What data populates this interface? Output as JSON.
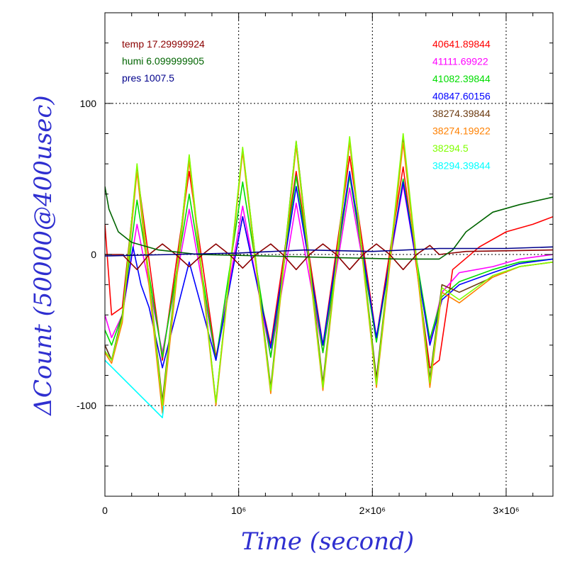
{
  "chart_data": {
    "type": "line",
    "title": "",
    "xlabel": "Time (second)",
    "ylabel": "ΔCount (50000@400usec)",
    "label_color": "#2f2fd0",
    "xlim": [
      0,
      3350000
    ],
    "ylim": [
      -160,
      160
    ],
    "grid": "dotted at tick labels",
    "x_ticks": [
      {
        "value": 0,
        "label": "0"
      },
      {
        "value": 1000000,
        "label": "10⁶"
      },
      {
        "value": 2000000,
        "label": "2×10⁶"
      },
      {
        "value": 3000000,
        "label": "3×10⁶"
      }
    ],
    "y_ticks": [
      {
        "value": 100,
        "label": "100"
      },
      {
        "value": 0,
        "label": "0"
      },
      {
        "value": -100,
        "label": "-100"
      }
    ],
    "annotations_left": [
      {
        "text": "temp 17.29999924",
        "color": "#8b0000"
      },
      {
        "text": "humi 6.099999905",
        "color": "#006400"
      },
      {
        "text": "pres 1007.5",
        "color": "#00008b"
      }
    ],
    "annotations_right": [
      {
        "text": "40641.89844",
        "color": "#ff0000"
      },
      {
        "text": "41111.69922",
        "color": "#ff00ff"
      },
      {
        "text": "41082.39844",
        "color": "#00dd00"
      },
      {
        "text": "40847.60156",
        "color": "#0000ff"
      },
      {
        "text": "38274.39844",
        "color": "#6b3a10"
      },
      {
        "text": "38274.19922",
        "color": "#ff8000"
      },
      {
        "text": "38294.5",
        "color": "#80ff00"
      },
      {
        "text": "38294.39844",
        "color": "#00ffff"
      }
    ],
    "series": [
      {
        "color": "#ff0000",
        "x": [
          0,
          50000,
          130000,
          240000,
          430000,
          630000,
          830000,
          1030000,
          1240000,
          1430000,
          1630000,
          1830000,
          2030000,
          2230000,
          2430000,
          2500000,
          2600000,
          2800000,
          3000000,
          3200000,
          3350000
        ],
        "y": [
          20,
          -40,
          -35,
          56,
          -70,
          55,
          -68,
          25,
          -60,
          55,
          -60,
          65,
          -55,
          58,
          -75,
          -70,
          -10,
          5,
          15,
          20,
          25
        ]
      },
      {
        "color": "#ff00ff",
        "x": [
          0,
          50000,
          130000,
          240000,
          430000,
          630000,
          830000,
          1030000,
          1240000,
          1430000,
          1630000,
          1830000,
          2030000,
          2230000,
          2430000,
          2520000,
          2650000,
          2900000,
          3100000,
          3350000
        ],
        "y": [
          -40,
          -55,
          -40,
          20,
          -65,
          30,
          -70,
          32,
          -68,
          34,
          -65,
          44,
          -55,
          46,
          -58,
          -25,
          -12,
          -8,
          -3,
          0
        ]
      },
      {
        "color": "#00dd00",
        "x": [
          0,
          50000,
          130000,
          240000,
          430000,
          630000,
          830000,
          1030000,
          1240000,
          1430000,
          1630000,
          1830000,
          2030000,
          2230000,
          2430000,
          2520000,
          2650000,
          2900000,
          3100000,
          3350000
        ],
        "y": [
          -50,
          -60,
          -40,
          36,
          -68,
          40,
          -70,
          48,
          -68,
          52,
          -65,
          52,
          -58,
          50,
          -56,
          -28,
          -18,
          -10,
          -5,
          -3
        ]
      },
      {
        "color": "#0000ff",
        "x": [
          0,
          50000,
          130000,
          210000,
          270000,
          330000,
          430000,
          530000,
          630000,
          830000,
          1030000,
          1240000,
          1430000,
          1630000,
          1830000,
          2030000,
          2230000,
          2430000,
          2520000,
          2650000,
          2900000,
          3100000,
          3350000
        ],
        "y": [
          -60,
          -70,
          -40,
          5,
          -20,
          -35,
          -75,
          -40,
          -5,
          -70,
          25,
          -62,
          45,
          -60,
          55,
          -55,
          48,
          -60,
          -30,
          -20,
          -12,
          -6,
          -3
        ]
      },
      {
        "color": "#6b3a10",
        "x": [
          0,
          50000,
          130000,
          240000,
          430000,
          630000,
          830000,
          1030000,
          1240000,
          1430000,
          1630000,
          1830000,
          2030000,
          2230000,
          2430000,
          2520000,
          2650000,
          2900000,
          3100000,
          3350000
        ],
        "y": [
          -60,
          -70,
          -40,
          58,
          -97,
          65,
          -98,
          70,
          -88,
          75,
          -85,
          75,
          -82,
          76,
          -82,
          -20,
          -25,
          -15,
          -8,
          -5
        ]
      },
      {
        "color": "#ff8000",
        "x": [
          0,
          50000,
          130000,
          240000,
          430000,
          630000,
          830000,
          1030000,
          1240000,
          1430000,
          1630000,
          1830000,
          2030000,
          2230000,
          2430000,
          2520000,
          2650000,
          2900000,
          3100000,
          3350000
        ],
        "y": [
          -65,
          -72,
          -45,
          55,
          -105,
          62,
          -100,
          68,
          -92,
          72,
          -90,
          75,
          -88,
          74,
          -88,
          -25,
          -32,
          -15,
          -8,
          -5
        ]
      },
      {
        "color": "#80ff00",
        "x": [
          0,
          50000,
          130000,
          240000,
          430000,
          630000,
          830000,
          1030000,
          1240000,
          1430000,
          1630000,
          1830000,
          2030000,
          2230000,
          2430000,
          2520000,
          2650000,
          2900000,
          3100000,
          3350000
        ],
        "y": [
          -64,
          -70,
          -42,
          60,
          -100,
          66,
          -98,
          71,
          -90,
          75,
          -88,
          78,
          -86,
          80,
          -85,
          -22,
          -30,
          -14,
          -8,
          -5
        ]
      },
      {
        "color": "#00ffff",
        "x": [
          0,
          430000,
          440000
        ],
        "y": [
          -70,
          -108,
          -100
        ]
      },
      {
        "color": "#8b0000",
        "x": [
          0,
          130000,
          240000,
          330000,
          430000,
          530000,
          630000,
          730000,
          830000,
          930000,
          1030000,
          1130000,
          1240000,
          1330000,
          1430000,
          1530000,
          1630000,
          1730000,
          1830000,
          1930000,
          2030000,
          2130000,
          2230000,
          2330000,
          2430000,
          2500000,
          2700000,
          3350000
        ],
        "y": [
          0,
          0,
          -10,
          0,
          7,
          0,
          -8,
          0,
          7,
          0,
          -9,
          0,
          7,
          0,
          -10,
          0,
          7,
          0,
          -10,
          0,
          7,
          0,
          -10,
          0,
          6,
          0,
          2,
          3
        ]
      },
      {
        "color": "#006400",
        "x": [
          0,
          30000,
          100000,
          200000,
          400000,
          700000,
          1200000,
          1700000,
          2200000,
          2500000,
          2600000,
          2700000,
          2900000,
          3100000,
          3350000
        ],
        "y": [
          45,
          30,
          15,
          8,
          3,
          0,
          -1,
          -2,
          -3,
          -3,
          3,
          15,
          28,
          33,
          38
        ]
      },
      {
        "color": "#00008b",
        "x": [
          0,
          500000,
          1000000,
          1500000,
          2000000,
          2500000,
          3000000,
          3350000
        ],
        "y": [
          -1,
          0,
          1,
          3,
          2,
          4,
          4,
          5
        ]
      }
    ]
  }
}
